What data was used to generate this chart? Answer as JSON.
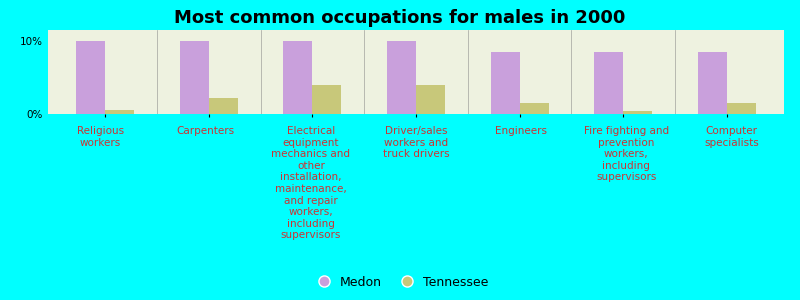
{
  "title": "Most common occupations for males in 2000",
  "background_color": "#00FFFF",
  "plot_background_color": "#EEF2E0",
  "categories": [
    "Religious\nworkers",
    "Carpenters",
    "Electrical\nequipment\nmechanics and\nother\ninstallation,\nmaintenance,\nand repair\nworkers,\nincluding\nsupervisors",
    "Driver/sales\nworkers and\ntruck drivers",
    "Engineers",
    "Fire fighting and\nprevention\nworkers,\nincluding\nsupervisors",
    "Computer\nspecialists"
  ],
  "medon_values": [
    10.0,
    10.0,
    10.0,
    10.0,
    8.5,
    8.5,
    8.5
  ],
  "tennessee_values": [
    0.6,
    2.2,
    4.0,
    4.0,
    1.5,
    0.4,
    1.5
  ],
  "medon_color": "#C9A0DC",
  "tennessee_color": "#C8C87A",
  "ylim": [
    0,
    11.5
  ],
  "ytick_labels": [
    "0%",
    "10%"
  ],
  "ytick_vals": [
    0,
    10
  ],
  "bar_width": 0.28,
  "title_fontsize": 13,
  "tick_fontsize": 7.5,
  "legend_fontsize": 9,
  "label_color": "#CC3333"
}
